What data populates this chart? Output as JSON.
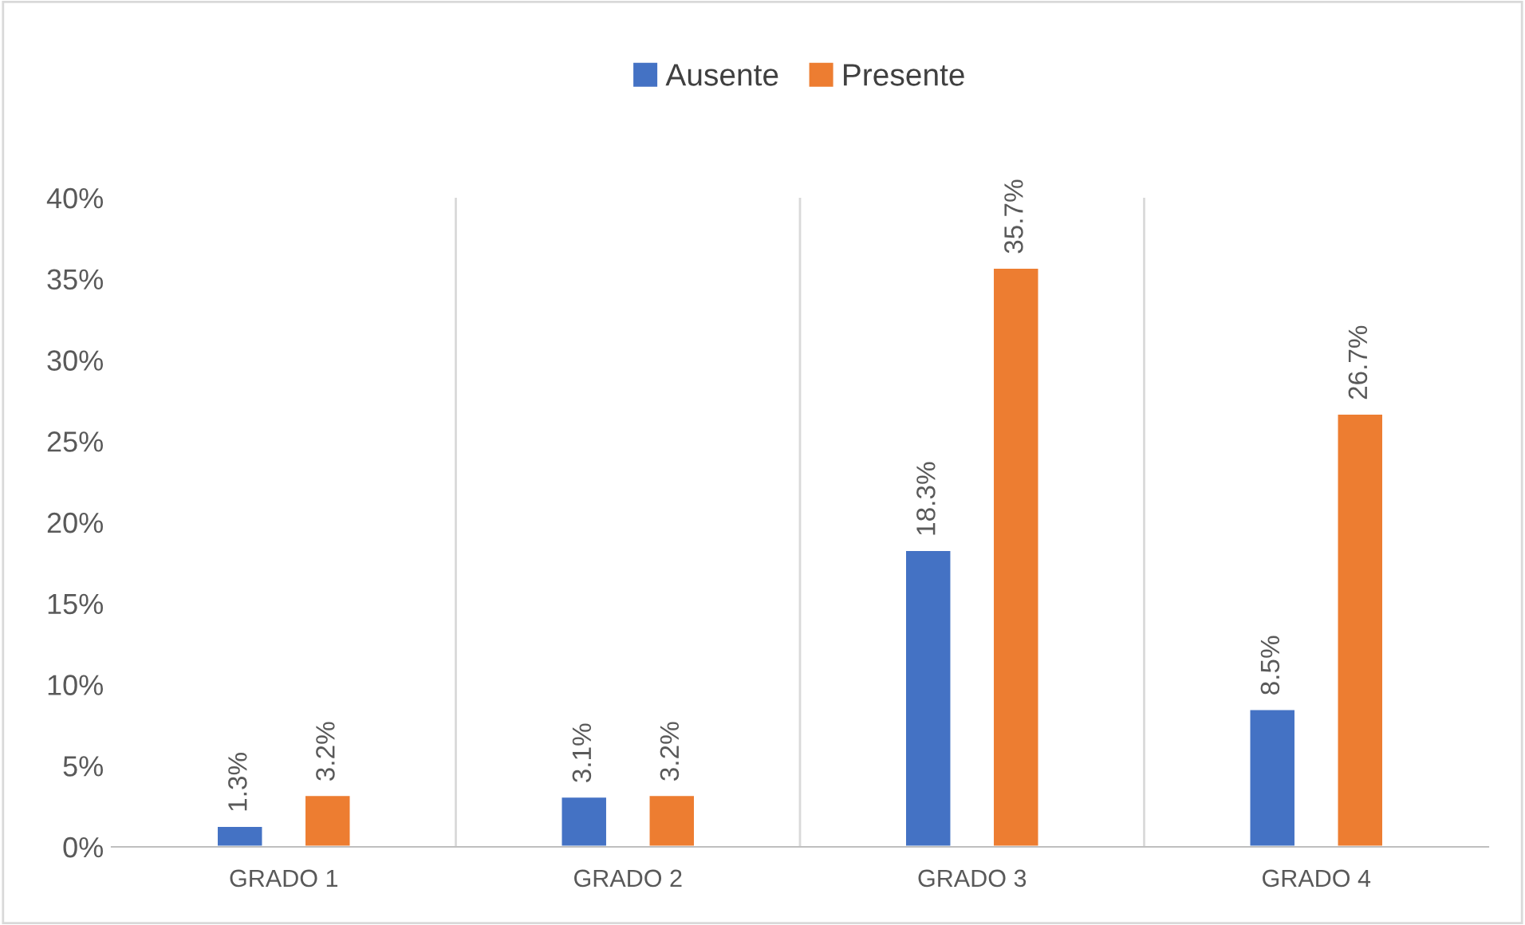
{
  "chart_data": {
    "type": "bar",
    "categories": [
      "GRADO 1",
      "GRADO 2",
      "GRADO 3",
      "GRADO 4"
    ],
    "series": [
      {
        "name": "Ausente",
        "color": "#4472c4",
        "values": [
          1.3,
          3.1,
          18.3,
          8.5
        ],
        "value_labels": [
          "1.3%",
          "3.1%",
          "18.3%",
          "8.5%"
        ]
      },
      {
        "name": "Presente",
        "color": "#ed7d31",
        "values": [
          3.2,
          3.2,
          35.7,
          26.7
        ],
        "value_labels": [
          "3.2%",
          "3.2%",
          "35.7%",
          "26.7%"
        ]
      }
    ],
    "ylim": [
      0,
      40
    ],
    "yticks": [
      {
        "value": 0,
        "label": "0%"
      },
      {
        "value": 5,
        "label": "5%"
      },
      {
        "value": 10,
        "label": "10%"
      },
      {
        "value": 15,
        "label": "15%"
      },
      {
        "value": 20,
        "label": "20%"
      },
      {
        "value": 25,
        "label": "25%"
      },
      {
        "value": 30,
        "label": "30%"
      },
      {
        "value": 35,
        "label": "35%"
      },
      {
        "value": 40,
        "label": "40%"
      }
    ],
    "grid": "x",
    "legend": "top"
  }
}
